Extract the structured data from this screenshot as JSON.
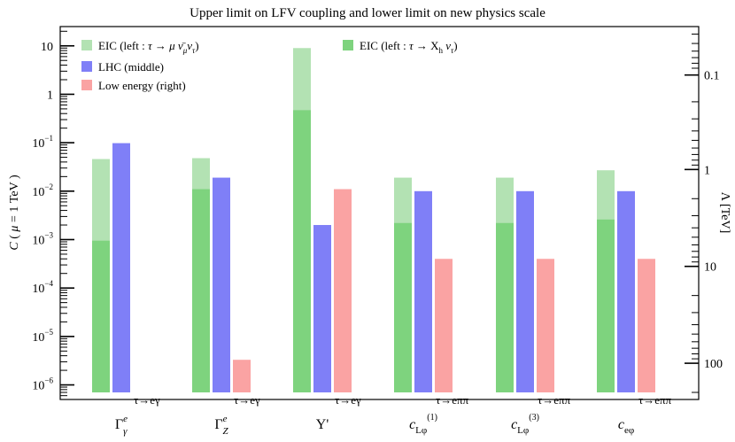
{
  "chart_data": {
    "type": "bar",
    "title": "Upper limit on LFV coupling and lower limit on new physics scale",
    "ylabel": "C ( μ = 1 TeV )",
    "y2label": "Λ [TeV]",
    "yscale": "log",
    "ylim": [
      5e-07,
      25
    ],
    "y_ticks": [
      {
        "value": 10,
        "mant": "10",
        "exp": ""
      },
      {
        "value": 1,
        "mant": "1",
        "exp": ""
      },
      {
        "value": 0.1,
        "mant": "10",
        "exp": "−1"
      },
      {
        "value": 0.01,
        "mant": "10",
        "exp": "−2"
      },
      {
        "value": 0.001,
        "mant": "10",
        "exp": "−3"
      },
      {
        "value": 0.0001,
        "mant": "10",
        "exp": "−4"
      },
      {
        "value": 1e-05,
        "mant": "10",
        "exp": "−5"
      },
      {
        "value": 1e-06,
        "mant": "10",
        "exp": "−6"
      }
    ],
    "y2_ticks": [
      {
        "label": "0.1",
        "coupling": 2.5
      },
      {
        "label": "1",
        "coupling": 0.028
      },
      {
        "label": "10",
        "coupling": 0.00028
      },
      {
        "label": "100",
        "coupling": 2.8e-06
      }
    ],
    "categories": [
      {
        "base": "Γ",
        "sup": "e",
        "sub": "γ",
        "process": "τ→eγ"
      },
      {
        "base": "Γ",
        "sup": "e",
        "sub": "Z",
        "process": "τ→eγ"
      },
      {
        "base": "Υ'",
        "sup": "",
        "sub": "",
        "process": "τ→eγ"
      },
      {
        "base": "c",
        "sup": "(1)",
        "sub": "Lφ",
        "process": "τ→eππ"
      },
      {
        "base": "c",
        "sup": "(3)",
        "sub": "Lφ",
        "process": "τ→eππ"
      },
      {
        "base": "c",
        "sup": "",
        "sub": "eφ",
        "process": "τ→eππ"
      }
    ],
    "series": [
      {
        "name": "EIC (left : τ → μ ν̄μ ντ)",
        "color": "#b3e2b3",
        "values": [
          0.046,
          0.048,
          9.0,
          0.019,
          0.019,
          0.027
        ]
      },
      {
        "name": "EIC (left : τ → Xh ντ)",
        "color": "#7ed37e",
        "values": [
          0.00095,
          0.011,
          0.47,
          0.0022,
          0.0022,
          0.0026
        ]
      },
      {
        "name": "LHC (middle)",
        "color": "#7f7ff7",
        "values": [
          0.098,
          0.019,
          0.002,
          0.01,
          0.01,
          0.01
        ]
      },
      {
        "name": "Low energy (right)",
        "color": "#faa3a3",
        "values": [
          6.5e-07,
          3.3e-06,
          0.011,
          0.0004,
          0.0004,
          0.0004
        ]
      }
    ],
    "legend": {
      "left": [
        {
          "pre": "EIC (left : τ → μ ",
          "nu": "ν̄",
          "nusub": "μ",
          "mid": "ν",
          "tail": "τ",
          "post": ")"
        },
        {
          "text": "LHC (middle)"
        },
        {
          "text": "Low energy (right)"
        }
      ],
      "right": {
        "pre": "EIC (left : τ → X",
        "xsub": "h",
        "mid": " ν",
        "tail": "τ",
        "post": ")"
      }
    }
  }
}
